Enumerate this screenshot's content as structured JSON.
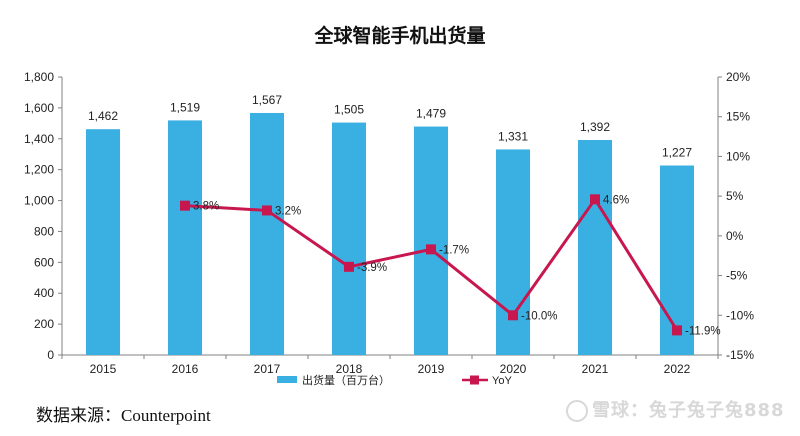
{
  "chart_data": {
    "type": "bar",
    "title": "全球智能手机出货量",
    "categories": [
      "2015",
      "2016",
      "2017",
      "2018",
      "2019",
      "2020",
      "2021",
      "2022"
    ],
    "series": [
      {
        "name": "出货量（百万台）",
        "type": "bar",
        "axis": "left",
        "values": [
          1462,
          1519,
          1567,
          1505,
          1479,
          1331,
          1392,
          1227
        ],
        "labels": [
          "1,462",
          "1,519",
          "1,567",
          "1,505",
          "1,479",
          "1,331",
          "1,392",
          "1,227"
        ],
        "color": "#3ab0e2"
      },
      {
        "name": "YoY",
        "type": "line",
        "axis": "right",
        "values": [
          null,
          3.8,
          3.2,
          -3.9,
          -1.7,
          -10.0,
          4.6,
          -11.9
        ],
        "labels": [
          "",
          "3.8%",
          "3.2%",
          "-3.9%",
          "-1.7%",
          "-10.0%",
          "4.6%",
          "-11.9%"
        ],
        "color": "#c8174f"
      }
    ],
    "ylim": [
      0,
      1800
    ],
    "y_ticks": [
      0,
      200,
      400,
      600,
      800,
      1000,
      1200,
      1400,
      1600,
      1800
    ],
    "y_tick_labels": [
      "0",
      "200",
      "400",
      "600",
      "800",
      "1,000",
      "1,200",
      "1,400",
      "1,600",
      "1,800"
    ],
    "y2lim": [
      -15,
      20
    ],
    "y2_ticks": [
      -15,
      -10,
      -5,
      0,
      5,
      10,
      15,
      20
    ],
    "y2_tick_labels": [
      "-15%",
      "-10%",
      "-5%",
      "0%",
      "5%",
      "10%",
      "15%",
      "20%"
    ],
    "grid": false,
    "legend": "bottom"
  },
  "source": "数据来源：Counterpoint",
  "watermark": "雪球：兔子兔子兔888"
}
